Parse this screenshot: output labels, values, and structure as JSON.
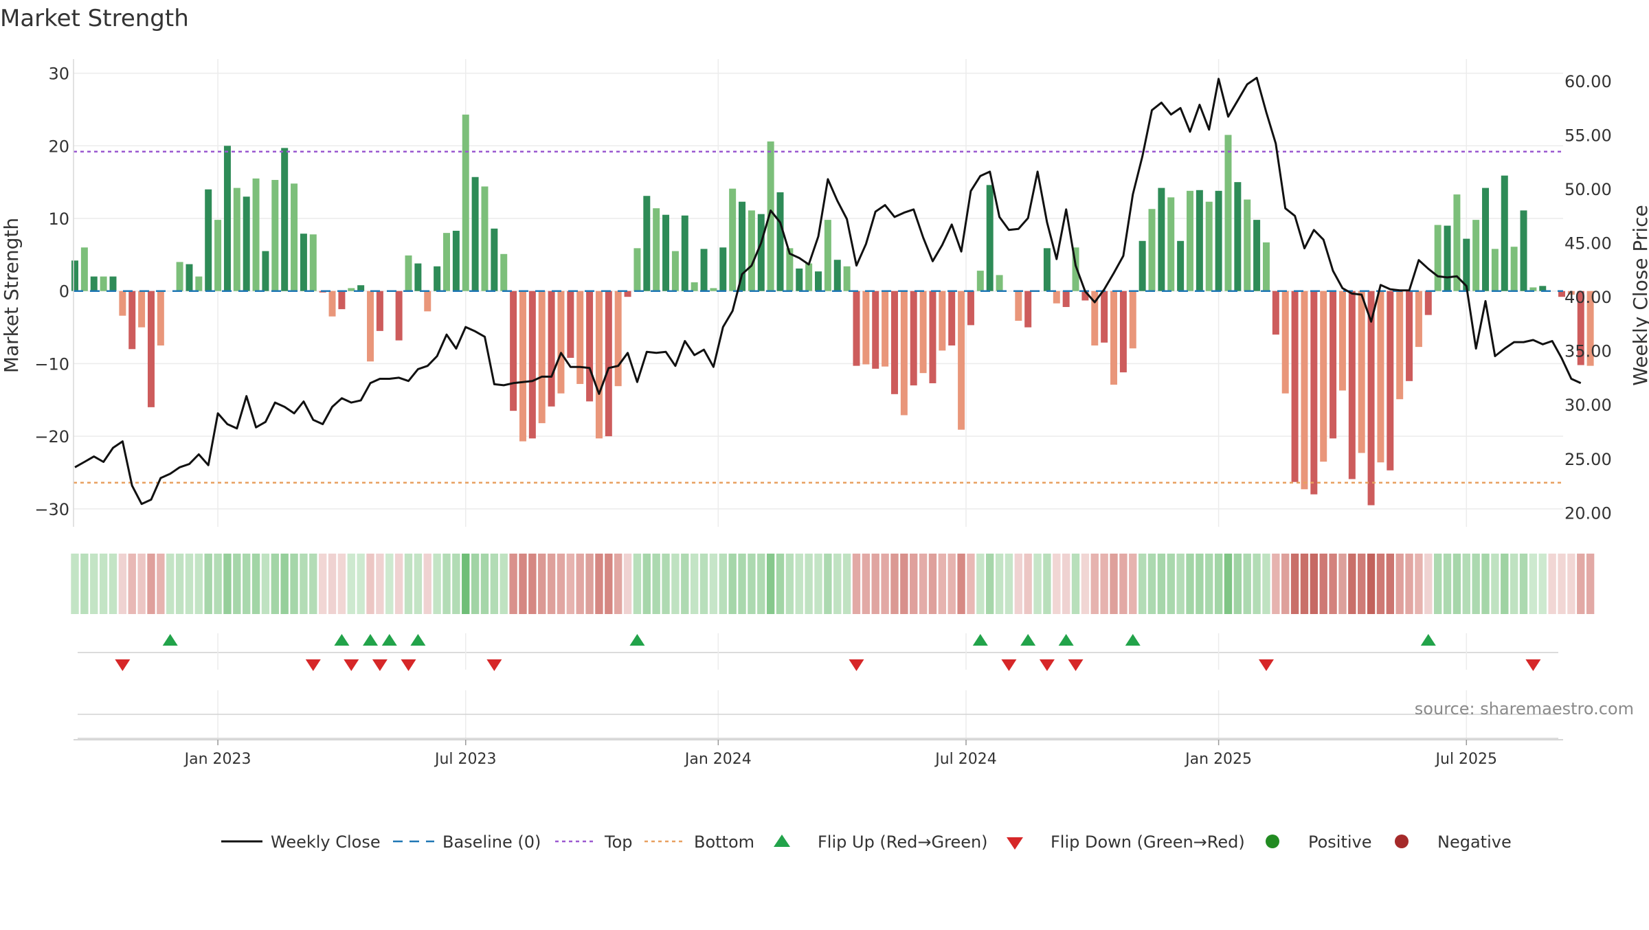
{
  "chart_data": {
    "type": "bar",
    "title": "Market Strength",
    "ylabel": "Market Strength",
    "y2label": "Weekly Close Price",
    "ylim": [
      -32,
      31
    ],
    "y2lim": [
      19.0,
      61.4
    ],
    "yticks": [
      -30,
      -20,
      -10,
      0,
      10,
      20,
      30
    ],
    "yticklabels": [
      "−30",
      "−20",
      "−10",
      "0",
      "10",
      "20",
      "30"
    ],
    "y2ticks": [
      20,
      25,
      30,
      35,
      40,
      45,
      50,
      55,
      60
    ],
    "y2ticklabels": [
      "20.00",
      "25.00",
      "30.00",
      "35.00",
      "40.00",
      "45.00",
      "50.00",
      "55.00",
      "60.00"
    ],
    "xticks": [
      {
        "label": "Jan 2023",
        "week": 15
      },
      {
        "label": "Jul 2023",
        "week": 41
      },
      {
        "label": "Jan 2024",
        "week": 67.5
      },
      {
        "label": "Jul 2024",
        "week": 93.5
      },
      {
        "label": "Jan 2025",
        "week": 120
      },
      {
        "label": "Jul 2025",
        "week": 146
      }
    ],
    "n_weeks": 157,
    "top_line": 19.2,
    "bottom_line": -26.4,
    "strength": [
      4.2,
      6,
      2,
      2,
      2,
      -3.4,
      -8,
      -5,
      -16,
      -7.5,
      0,
      4,
      3.7,
      2,
      14,
      9.8,
      20,
      14.2,
      13,
      15.5,
      5.5,
      15.3,
      19.7,
      14.8,
      7.9,
      7.8,
      -0.2,
      -3.5,
      -2.5,
      0.4,
      0.8,
      -9.7,
      -5.5,
      0,
      -6.8,
      4.9,
      3.8,
      -2.8,
      3.4,
      8,
      8.3,
      24.3,
      15.7,
      14.4,
      8.6,
      5.1,
      -16.5,
      -20.7,
      -20.3,
      -18.2,
      -15.9,
      -14.1,
      -9.2,
      -12.8,
      -15.2,
      -20.3,
      -20,
      -13.1,
      -0.8,
      5.9,
      13.1,
      11.4,
      10.5,
      5.5,
      10.4,
      1.2,
      5.8,
      0.4,
      6,
      14.1,
      12.3,
      11.1,
      10.6,
      20.6,
      13.6,
      5.9,
      3.1,
      3.8,
      2.7,
      9.8,
      4.3,
      3.4,
      -10.3,
      -10.1,
      -10.7,
      -10.4,
      -14.2,
      -17.1,
      -13,
      -11.3,
      -12.7,
      -8.2,
      -7.5,
      -19.1,
      -4.7,
      2.8,
      14.6,
      2.2,
      0,
      -4.1,
      -5,
      0,
      5.9,
      -1.7,
      -2.2,
      6,
      -1.3,
      -7.5,
      -7.1,
      -12.9,
      -11.2,
      -7.9,
      6.9,
      11.3,
      14.2,
      12.9,
      6.9,
      13.8,
      13.9,
      12.3,
      13.8,
      21.5,
      15,
      12.6,
      9.8,
      6.7,
      -6,
      -14.1,
      -26.3,
      -27.3,
      -28,
      -23.5,
      -20.3,
      -13.7,
      -25.9,
      -22.3,
      -29.5,
      -23.6,
      -24.7,
      -14.9,
      -12.4,
      -7.7,
      -3.3,
      9.1,
      9,
      13.3,
      7.2,
      9.8,
      14.2,
      5.8,
      15.9,
      6.1,
      11.1,
      0.5,
      0.7,
      0,
      -0.8,
      -0.5,
      -10.2,
      -10.3
    ],
    "weekly_close": [
      24.2,
      24.7,
      25.2,
      24.7,
      26,
      26.6,
      22.5,
      20.8,
      21.2,
      23.2,
      23.6,
      24.2,
      24.5,
      25.4,
      24.4,
      29.2,
      28.2,
      27.8,
      30.8,
      27.9,
      28.4,
      30.2,
      29.8,
      29.2,
      30.3,
      28.6,
      28.2,
      29.8,
      30.6,
      30.2,
      30.4,
      32,
      32.4,
      32.4,
      32.5,
      32.2,
      33.3,
      33.6,
      34.5,
      36.5,
      35.2,
      37.2,
      36.8,
      36.3,
      31.9,
      31.8,
      32,
      32.1,
      32.2,
      32.6,
      32.6,
      34.8,
      33.5,
      33.5,
      33.4,
      31,
      33.4,
      33.6,
      34.8,
      32.1,
      34.9,
      34.8,
      34.9,
      33.6,
      35.9,
      34.6,
      35.1,
      33.5,
      37.2,
      38.7,
      42.1,
      42.9,
      45,
      48,
      46.9,
      44,
      43.6,
      43,
      45.6,
      50.9,
      48.9,
      47.2,
      42.9,
      44.9,
      47.9,
      48.5,
      47.4,
      47.8,
      48.1,
      45.5,
      43.3,
      44.8,
      46.7,
      44.2,
      49.8,
      51.2,
      51.6,
      47.4,
      46.2,
      46.3,
      47.3,
      51.6,
      46.9,
      43.5,
      48.1,
      42.9,
      40.5,
      39.5,
      40.7,
      42.2,
      43.8,
      49.5,
      53,
      57.3,
      58,
      56.9,
      57.5,
      55.3,
      57.8,
      55.5,
      60.2,
      56.7,
      58.2,
      59.7,
      60.3,
      57.1,
      54.2,
      48.2,
      47.5,
      44.5,
      46.2,
      45.3,
      42.4,
      40.8,
      40.3,
      40.2,
      37.7,
      41.1,
      40.7,
      40.6,
      40.6,
      43.4,
      42.6,
      41.9,
      41.8,
      41.9,
      41,
      35.2,
      39.6,
      34.5,
      35.2,
      35.8,
      35.8,
      36,
      35.6,
      35.9,
      34.3,
      32.4,
      32
    ],
    "banner_colors": [
      "#c3e4c5",
      "#b8dfbb",
      "#c3e4c5",
      "#c3e4c5",
      "#c3e4c5",
      "#efd2d1",
      "#e8b8b5",
      "#ecc6c4",
      "#dfa09c",
      "#e6b3af",
      "#c3e4c5",
      "#c0e2c2",
      "#c3e4c5",
      "#c3e4c5",
      "#a6d6aa",
      "#b2dcb5",
      "#95ce9a",
      "#a6d6aa",
      "#a9d8ad",
      "#a2d5a6",
      "#bfe2c1",
      "#a3d5a7",
      "#96cf9b",
      "#a5d6a9",
      "#b3dcb6",
      "#b3dcb6",
      "#f1d6d4",
      "#efd2d1",
      "#f1d6d4",
      "#cde9cf",
      "#cde9cf",
      "#ecc6c4",
      "#efd2d1",
      "#cde9cf",
      "#efd2d1",
      "#c0e2c2",
      "#c3e4c5",
      "#efd2d1",
      "#c3e4c5",
      "#b3dcb6",
      "#b2dcb5",
      "#6fbe77",
      "#a1d4a5",
      "#a5d6a9",
      "#b2dcb5",
      "#bfe2c1",
      "#d9918c",
      "#d58782",
      "#d58782",
      "#db9994",
      "#dea09b",
      "#e1a6a2",
      "#e6b3af",
      "#e1a6a2",
      "#dca09b",
      "#d58782",
      "#d58782",
      "#e1a6a2",
      "#efd2d1",
      "#b8dfbb",
      "#a6d6aa",
      "#acd9b0",
      "#afdab2",
      "#bfe2c1",
      "#afdab2",
      "#c3e4c5",
      "#b8dfbb",
      "#c6e5c8",
      "#b8dfbb",
      "#a5d6a9",
      "#a9d8ad",
      "#acd9b0",
      "#afdab2",
      "#86c88c",
      "#a2d5a6",
      "#b8dfbb",
      "#c3e4c5",
      "#c0e2c2",
      "#c3e4c5",
      "#acd9b0",
      "#c0e2c2",
      "#c0e2c2",
      "#e2a9a5",
      "#e2a9a5",
      "#e0a5a1",
      "#e2a9a5",
      "#db9994",
      "#d8908b",
      "#dfa09c",
      "#e3aca8",
      "#dea09b",
      "#e6b3af",
      "#e6b3af",
      "#d68984",
      "#e8b8b5",
      "#c6e5c8",
      "#a6d6aa",
      "#c3e4c5",
      "#c6e5c8",
      "#efd2d1",
      "#ecc6c4",
      "#c6e5c8",
      "#b8dfbb",
      "#f1d6d4",
      "#efd2d1",
      "#b8dfbb",
      "#f1d6d4",
      "#e6b3af",
      "#e6b3af",
      "#dea09b",
      "#e2a9a5",
      "#e6b3af",
      "#b3dcb6",
      "#acd9b0",
      "#a6d6aa",
      "#a9d8ad",
      "#b3dcb6",
      "#a2d5a6",
      "#a2d5a6",
      "#a9d8ad",
      "#a2d5a6",
      "#7fc585",
      "#a0d3a4",
      "#acd9b0",
      "#b2dcb5",
      "#bfe2c1",
      "#e6b3af",
      "#dea09b",
      "#c96f69",
      "#c96f69",
      "#c66964",
      "#ce7974",
      "#d3827d",
      "#dca09b",
      "#c96f69",
      "#cf7c77",
      "#c2625c",
      "#ce7974",
      "#cc7570",
      "#dfa09c",
      "#e1a6a2",
      "#e6b3af",
      "#efd2d1",
      "#acd9b0",
      "#acd9b0",
      "#a6d6aa",
      "#b3dcb6",
      "#acd9b0",
      "#a5d6a9",
      "#bfe2c1",
      "#9fd3a3",
      "#bfe2c1",
      "#acd9b0",
      "#cde9cf",
      "#cde9cf",
      "#f1d6d4",
      "#f1d6d4",
      "#f1d6d4",
      "#e2a9a5",
      "#e2a9a5"
    ],
    "flip_up_weeks": [
      10,
      28,
      31,
      33,
      36,
      59,
      95,
      100,
      104,
      111,
      142
    ],
    "flip_down_weeks": [
      5,
      25,
      29,
      32,
      35,
      44,
      82,
      98,
      102,
      105,
      125,
      153
    ],
    "colors": {
      "pos_dark": "#2e8b57",
      "pos_light": "#7cbf7a",
      "neg_dark": "#cd5c5c",
      "neg_light": "#e9967a",
      "top": "#9b59d0",
      "bottom": "#e8a060",
      "baseline": "#1f77b4",
      "flip_up": "#22a34a",
      "flip_down": "#d62728",
      "positive_marker": "#228b22",
      "negative_marker": "#a52a2a",
      "close_line": "#111111"
    },
    "legend": [
      {
        "key": "close",
        "label": "Weekly Close"
      },
      {
        "key": "baseline",
        "label": "Baseline (0)"
      },
      {
        "key": "top",
        "label": "Top"
      },
      {
        "key": "bottom",
        "label": "Bottom"
      },
      {
        "key": "flip_up",
        "label": "Flip Up (Red→Green)"
      },
      {
        "key": "flip_down",
        "label": "Flip Down (Green→Red)"
      },
      {
        "key": "positive",
        "label": "Positive"
      },
      {
        "key": "negative",
        "label": "Negative"
      }
    ],
    "legend_position": "bottom-center",
    "source_text": "source: sharemaestro.com"
  }
}
